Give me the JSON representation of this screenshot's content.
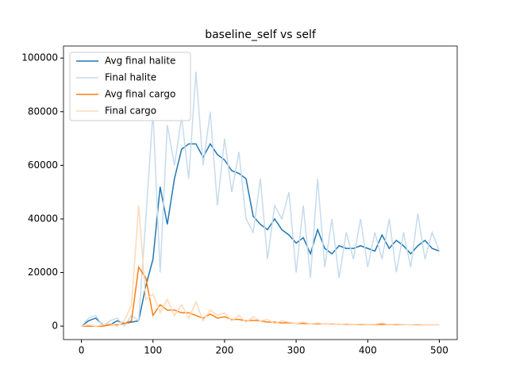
{
  "chart_data": {
    "type": "line",
    "title": "baseline_self vs self",
    "x": [
      0,
      10,
      20,
      30,
      40,
      50,
      60,
      70,
      80,
      90,
      100,
      110,
      120,
      130,
      140,
      150,
      160,
      170,
      180,
      190,
      200,
      210,
      220,
      230,
      240,
      250,
      260,
      270,
      280,
      290,
      300,
      310,
      320,
      330,
      340,
      350,
      360,
      370,
      380,
      390,
      400,
      410,
      420,
      430,
      440,
      450,
      460,
      470,
      480,
      490,
      500
    ],
    "series": [
      {
        "name": "Avg final halite",
        "color": "#1f77b4",
        "values": [
          0,
          2000,
          3000,
          500,
          500,
          2000,
          1000,
          1500,
          2000,
          15000,
          25000,
          52000,
          38000,
          55000,
          66000,
          68000,
          68000,
          63000,
          68000,
          64000,
          62000,
          58000,
          57000,
          55000,
          41000,
          38000,
          36000,
          40000,
          36000,
          34000,
          31000,
          33000,
          27000,
          36000,
          29000,
          27000,
          30000,
          29000,
          29000,
          30000,
          29000,
          28000,
          34000,
          29000,
          32000,
          30000,
          27000,
          30000,
          32000,
          29000,
          28000
        ]
      },
      {
        "name": "Final halite",
        "color": "#c6dbed",
        "values": [
          0,
          3000,
          4000,
          0,
          2000,
          3000,
          0,
          4000,
          2000,
          40000,
          80000,
          20000,
          75000,
          60000,
          78000,
          55000,
          95000,
          60000,
          80000,
          45000,
          70000,
          50000,
          65000,
          40000,
          35000,
          55000,
          25000,
          45000,
          40000,
          50000,
          20000,
          45000,
          18000,
          55000,
          22000,
          40000,
          18000,
          35000,
          25000,
          40000,
          22000,
          35000,
          25000,
          40000,
          20000,
          35000,
          22000,
          42000,
          25000,
          35000,
          28000
        ]
      },
      {
        "name": "Avg final cargo",
        "color": "#ff7f0e",
        "values": [
          0,
          0,
          0,
          0,
          500,
          500,
          1000,
          2000,
          22000,
          18000,
          4000,
          8000,
          6000,
          6000,
          5000,
          5000,
          4000,
          3000,
          4500,
          3000,
          3500,
          2500,
          2500,
          2000,
          2200,
          2000,
          1500,
          1500,
          1200,
          1300,
          1000,
          1000,
          900,
          900,
          800,
          800,
          700,
          700,
          600,
          600,
          600,
          600,
          700,
          600,
          600,
          600,
          500,
          500,
          500,
          500,
          500
        ]
      },
      {
        "name": "Final cargo",
        "color": "#ffd9b8",
        "values": [
          0,
          500,
          0,
          500,
          1000,
          0,
          2000,
          8000,
          45000,
          10000,
          12000,
          5000,
          10000,
          4000,
          8000,
          3000,
          9000,
          2000,
          6000,
          4000,
          5000,
          2000,
          4000,
          1500,
          3500,
          2000,
          2500,
          1000,
          2000,
          1500,
          1000,
          1500,
          800,
          1200,
          700,
          1000,
          600,
          900,
          500,
          800,
          600,
          700,
          1200,
          500,
          800,
          600,
          500,
          700,
          500,
          600,
          500
        ]
      }
    ],
    "xlim": [
      -25,
      525
    ],
    "ylim": [
      -5000,
      104500
    ],
    "xticks": [
      0,
      100,
      200,
      300,
      400,
      500
    ],
    "yticks": [
      0,
      20000,
      40000,
      60000,
      80000,
      100000
    ],
    "legend": "upper left",
    "grid": false
  }
}
